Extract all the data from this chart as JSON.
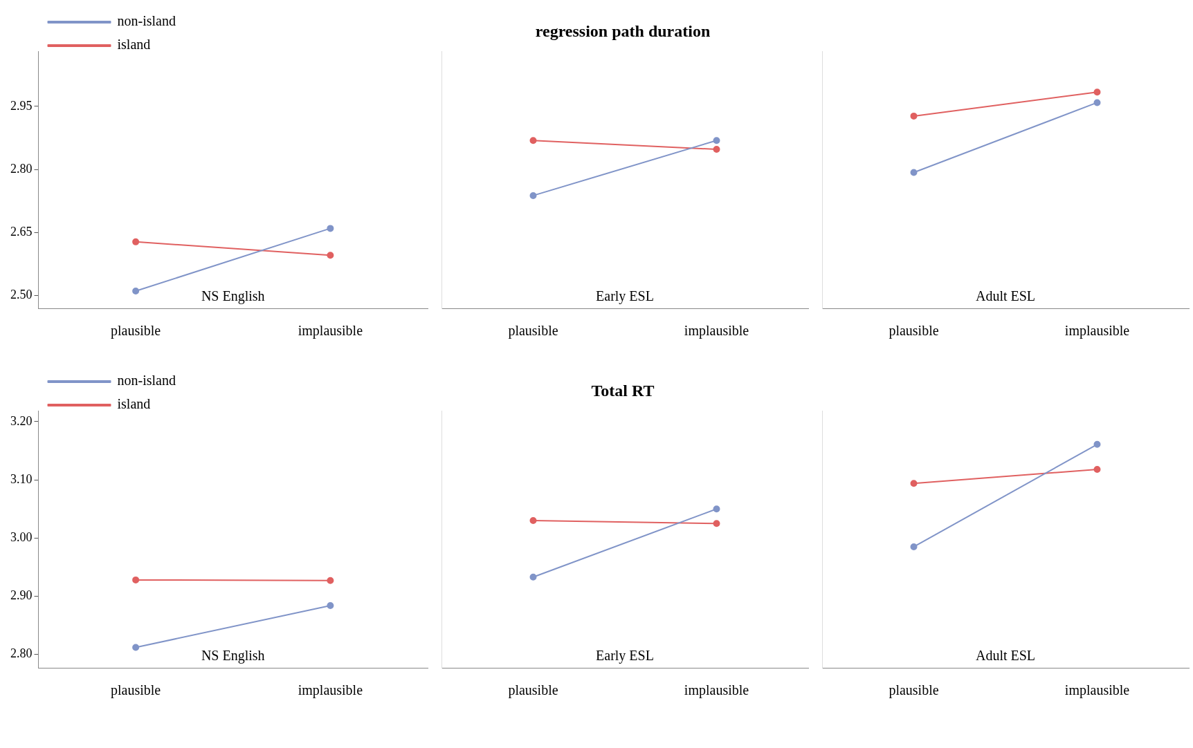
{
  "chart_data": [
    {
      "type": "line",
      "categories": [
        "plausible",
        "implausible"
      ],
      "annotations": [
        "NS English"
      ],
      "ylim": [
        2.47,
        3.08
      ],
      "yticks": [
        {
          "value": 2.5,
          "label": "2.50"
        },
        {
          "value": 2.65,
          "label": "2.65"
        },
        {
          "value": 2.8,
          "label": "2.80"
        },
        {
          "value": 2.95,
          "label": "2.95"
        }
      ],
      "legend": "top left",
      "marker": "circle",
      "grid": false,
      "series": [
        {
          "name": "non-island",
          "color": "#8094c8",
          "values": [
            2.511,
            2.66
          ]
        },
        {
          "name": "island",
          "color": "#e06060",
          "values": [
            2.628,
            2.596
          ]
        }
      ]
    },
    {
      "type": "line",
      "title": "regression path duration",
      "categories": [
        "plausible",
        "implausible"
      ],
      "annotations": [
        "Early ESL"
      ],
      "ylim": [
        2.47,
        3.08
      ],
      "tick_labels": "x",
      "marker": "circle",
      "grid": false,
      "series": [
        {
          "color": "#8094c8",
          "values": [
            2.738,
            2.869
          ]
        },
        {
          "color": "#e06060",
          "values": [
            2.869,
            2.848
          ]
        }
      ]
    },
    {
      "type": "line",
      "categories": [
        "plausible",
        "implausible"
      ],
      "annotations": [
        "Adult ESL"
      ],
      "ylim": [
        2.47,
        3.08
      ],
      "tick_labels": "x",
      "marker": "circle",
      "grid": false,
      "series": [
        {
          "color": "#8094c8",
          "values": [
            2.793,
            2.959
          ]
        },
        {
          "color": "#e06060",
          "values": [
            2.927,
            2.984
          ]
        }
      ]
    },
    {
      "type": "line",
      "categories": [
        "plausible",
        "implausible"
      ],
      "annotations": [
        "NS English"
      ],
      "ylim": [
        2.777,
        3.218
      ],
      "yticks": [
        {
          "value": 2.8,
          "label": "2.80"
        },
        {
          "value": 2.9,
          "label": "2.90"
        },
        {
          "value": 3.0,
          "label": "3.00"
        },
        {
          "value": 3.1,
          "label": "3.10"
        },
        {
          "value": 3.2,
          "label": "3.20"
        }
      ],
      "legend": "top left",
      "marker": "circle",
      "grid": false,
      "series": [
        {
          "name": "non-island",
          "color": "#8094c8",
          "values": [
            2.812,
            2.884
          ]
        },
        {
          "name": "island",
          "color": "#e06060",
          "values": [
            2.928,
            2.927
          ]
        }
      ]
    },
    {
      "type": "line",
      "title": "Total RT",
      "categories": [
        "plausible",
        "implausible"
      ],
      "annotations": [
        "Early ESL"
      ],
      "ylim": [
        2.777,
        3.218
      ],
      "tick_labels": "x",
      "marker": "circle",
      "grid": false,
      "series": [
        {
          "color": "#8094c8",
          "values": [
            2.933,
            3.05
          ]
        },
        {
          "color": "#e06060",
          "values": [
            3.03,
            3.025
          ]
        }
      ]
    },
    {
      "type": "line",
      "categories": [
        "plausible",
        "implausible"
      ],
      "annotations": [
        "Adult ESL"
      ],
      "ylim": [
        2.777,
        3.218
      ],
      "tick_labels": "x",
      "marker": "circle",
      "grid": false,
      "series": [
        {
          "color": "#8094c8",
          "values": [
            2.985,
            3.161
          ]
        },
        {
          "color": "#e06060",
          "values": [
            3.094,
            3.118
          ]
        }
      ]
    }
  ]
}
